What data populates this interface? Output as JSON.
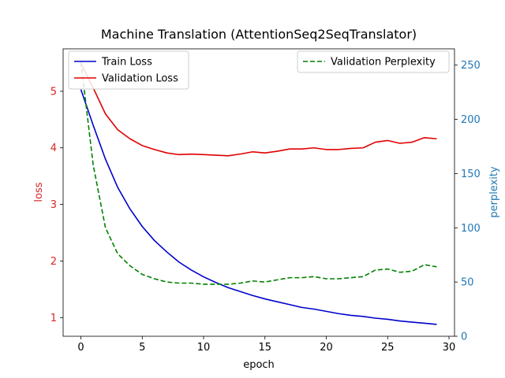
{
  "chart_data": {
    "type": "line",
    "title": "Machine Translation (AttentionSeq2SeqTranslator)",
    "xlabel": "epoch",
    "ylabel_left": "loss",
    "ylabel_right": "perplexity",
    "xlim": [
      -1.45,
      30.45
    ],
    "ylim_left": [
      0.67,
      5.75
    ],
    "ylim_right": [
      0,
      265
    ],
    "x_ticks": [
      0,
      5,
      10,
      15,
      20,
      25,
      30
    ],
    "y_left_ticks": [
      1,
      2,
      3,
      4,
      5
    ],
    "y_right_ticks": [
      0,
      50,
      100,
      150,
      200,
      250
    ],
    "left_axis_color": "#d62728",
    "right_axis_color": "#1f77b4",
    "grid": false,
    "x": [
      0,
      1,
      2,
      3,
      4,
      5,
      6,
      7,
      8,
      9,
      10,
      11,
      12,
      13,
      14,
      15,
      16,
      17,
      18,
      19,
      20,
      21,
      22,
      23,
      24,
      25,
      26,
      27,
      28,
      29
    ],
    "series": [
      {
        "name": "Train Loss",
        "axis": "left",
        "color": "#0000cc",
        "style": "solid",
        "values": [
          5.03,
          4.4,
          3.8,
          3.3,
          2.92,
          2.61,
          2.36,
          2.16,
          1.98,
          1.84,
          1.72,
          1.62,
          1.53,
          1.46,
          1.39,
          1.33,
          1.28,
          1.23,
          1.18,
          1.15,
          1.11,
          1.07,
          1.04,
          1.02,
          0.99,
          0.97,
          0.94,
          0.92,
          0.9,
          0.88
        ]
      },
      {
        "name": "Validation Loss",
        "axis": "left",
        "color": "#e00000",
        "style": "solid",
        "values": [
          5.49,
          5.06,
          4.6,
          4.32,
          4.16,
          4.04,
          3.97,
          3.91,
          3.88,
          3.89,
          3.88,
          3.87,
          3.86,
          3.89,
          3.93,
          3.91,
          3.94,
          3.98,
          3.98,
          4.0,
          3.97,
          3.97,
          3.99,
          4.0,
          4.1,
          4.13,
          4.08,
          4.1,
          4.18,
          4.16
        ]
      },
      {
        "name": "Validation Perplexity",
        "axis": "right",
        "color": "#008000",
        "style": "dashed",
        "values": [
          253,
          158,
          100,
          76,
          65,
          57,
          53,
          50,
          49,
          49,
          48,
          48,
          48,
          49,
          51,
          50,
          52,
          54,
          54,
          55,
          53,
          53,
          54,
          55,
          61,
          62,
          59,
          60,
          66,
          64
        ]
      }
    ],
    "legends": [
      {
        "placement": "upper-left",
        "entries": [
          "Train Loss",
          "Validation Loss"
        ]
      },
      {
        "placement": "upper-right",
        "entries": [
          "Validation Perplexity"
        ]
      }
    ]
  }
}
